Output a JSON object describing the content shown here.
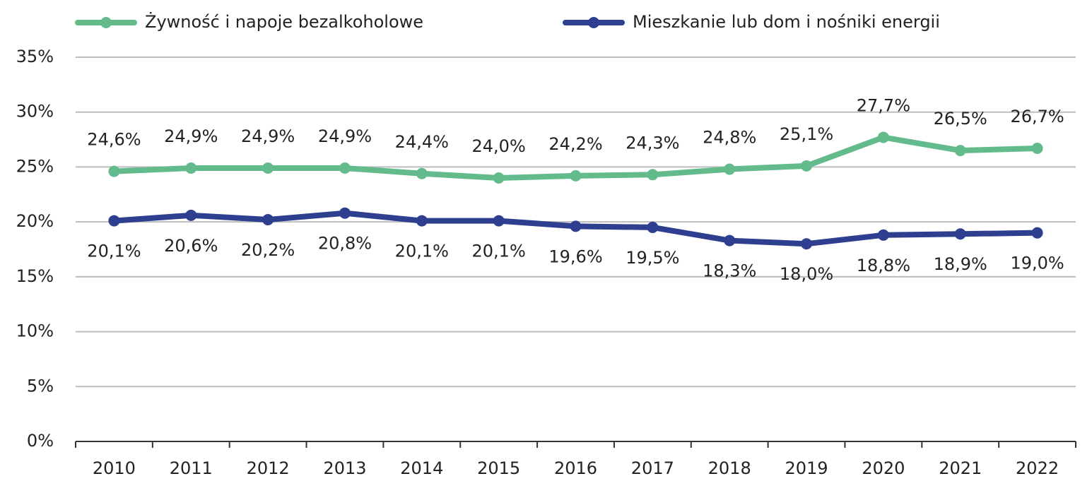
{
  "chart_data": {
    "type": "line",
    "categories": [
      "2010",
      "2011",
      "2012",
      "2013",
      "2014",
      "2015",
      "2016",
      "2017",
      "2018",
      "2019",
      "2020",
      "2021",
      "2022"
    ],
    "series": [
      {
        "name": "Żywność i napoje bezalkoholowe",
        "color": "#63bb8c",
        "values": [
          24.6,
          24.9,
          24.9,
          24.9,
          24.4,
          24.0,
          24.2,
          24.3,
          24.8,
          25.1,
          27.7,
          26.5,
          26.7
        ],
        "value_labels": [
          "24,6%",
          "24,9%",
          "24,9%",
          "24,9%",
          "24,4%",
          "24,0%",
          "24,2%",
          "24,3%",
          "24,8%",
          "25,1%",
          "27,7%",
          "26,5%",
          "26,7%"
        ]
      },
      {
        "name": "Mieszkanie lub dom i nośniki energii",
        "color": "#2e3f8f",
        "values": [
          20.1,
          20.6,
          20.2,
          20.8,
          20.1,
          20.1,
          19.6,
          19.5,
          18.3,
          18.0,
          18.8,
          18.9,
          19.0
        ],
        "value_labels": [
          "20,1%",
          "20,6%",
          "20,2%",
          "20,8%",
          "20,1%",
          "20,1%",
          "19,6%",
          "19,5%",
          "18,3%",
          "18,0%",
          "18,8%",
          "18,9%",
          "19,0%"
        ]
      }
    ],
    "ylim": [
      0,
      35
    ],
    "yticks": [
      {
        "value": 0,
        "label": "0%"
      },
      {
        "value": 5,
        "label": "5%"
      },
      {
        "value": 10,
        "label": "10%"
      },
      {
        "value": 15,
        "label": "15%"
      },
      {
        "value": 20,
        "label": "20%"
      },
      {
        "value": 25,
        "label": "25%"
      },
      {
        "value": 30,
        "label": "30%"
      },
      {
        "value": 35,
        "label": "35%"
      }
    ],
    "grid": true,
    "legend": "top"
  }
}
